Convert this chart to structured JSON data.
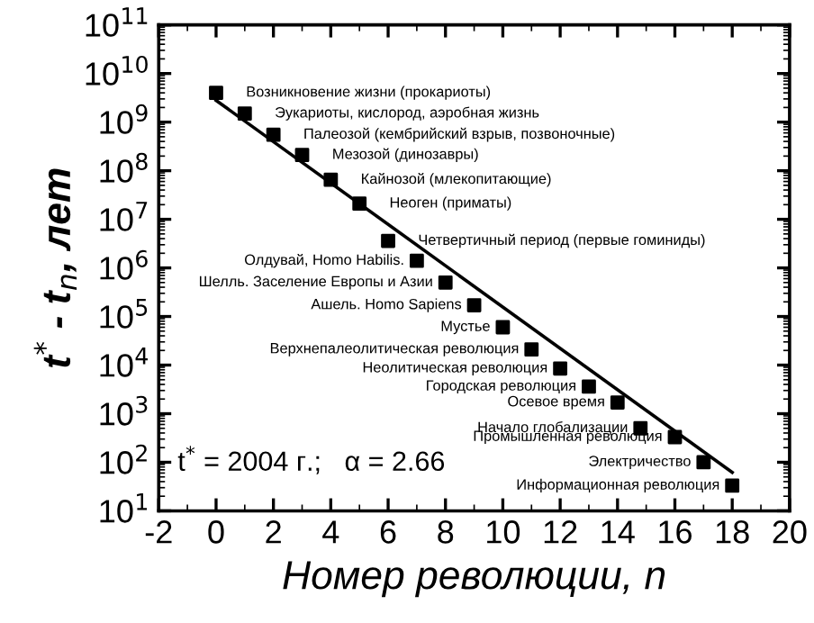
{
  "chart_data": {
    "type": "scatter",
    "xlabel": "Номер революции, n",
    "ylabel": "t$^{*}$ - t$_{n}$, лет",
    "log": "y",
    "grid": false,
    "legend": false,
    "xlim": [
      -2,
      20
    ],
    "xticks": [
      -2,
      0,
      2,
      4,
      6,
      8,
      10,
      12,
      14,
      16,
      18,
      20
    ],
    "ylim": [
      10,
      100000000000
    ],
    "yticks": [
      {
        "value": 10,
        "label": "10$^{1}$"
      },
      {
        "value": 100,
        "label": "10$^{2}$"
      },
      {
        "value": 1000,
        "label": "10$^{3}$"
      },
      {
        "value": 10000,
        "label": "10$^{4}$"
      },
      {
        "value": 100000,
        "label": "10$^{5}$"
      },
      {
        "value": 1000000,
        "label": "10$^{6}$"
      },
      {
        "value": 10000000,
        "label": "10$^{7}$"
      },
      {
        "value": 100000000,
        "label": "10$^{8}$"
      },
      {
        "value": 1000000000,
        "label": "10$^{9}$"
      },
      {
        "value": 10000000000,
        "label": "10$^{10}$"
      },
      {
        "value": 100000000000,
        "label": "10$^{11}$"
      }
    ],
    "series": [
      {
        "type": "scatter",
        "marker": "square",
        "color": "#000000",
        "x": [
          0,
          1,
          2,
          3,
          4,
          5,
          6,
          7,
          8,
          9,
          10,
          11,
          12,
          13,
          14,
          14.8,
          16,
          17,
          18
        ],
        "values": [
          4000000000,
          1500000000,
          550000000,
          210000000,
          65000000,
          21000000,
          3600000,
          1400000,
          500000,
          170000,
          60000,
          21000,
          8500,
          3600,
          1700,
          500,
          330,
          100,
          33
        ]
      },
      {
        "type": "line",
        "marker": "none",
        "line_style": "solid",
        "color": "#000000",
        "x": [
          0,
          18
        ],
        "values": [
          2800000000,
          62
        ]
      }
    ],
    "annotations": [
      {
        "text": "Возникновение жизни (прокариоты)",
        "x": 0,
        "y": 4000000000
      },
      {
        "text": "Эукариоты, кислород, аэробная жизнь",
        "x": 1,
        "y": 1500000000
      },
      {
        "text": "Палеозой (кембрийский взрыв, позвоночные)",
        "x": 2,
        "y": 550000000
      },
      {
        "text": "Мезозой (динозавры)",
        "x": 3,
        "y": 210000000
      },
      {
        "text": "Кайнозой (млекопитающие)",
        "x": 4,
        "y": 65000000
      },
      {
        "text": "Неоген (приматы)",
        "x": 5,
        "y": 21000000
      },
      {
        "text": "Четвертичный период (первые гоминиды)",
        "x": 6,
        "y": 3600000
      },
      {
        "text": "Олдувай, Homo Habilis.",
        "x": 7,
        "y": 1400000
      },
      {
        "text": "Шелль. Заселение Европы и Азии",
        "x": 8,
        "y": 500000
      },
      {
        "text": "Ашель. Homo Sapiens",
        "x": 9,
        "y": 170000
      },
      {
        "text": "Мустье",
        "x": 10,
        "y": 60000
      },
      {
        "text": "Верхнепалеолитическая революция",
        "x": 11,
        "y": 21000
      },
      {
        "text": "Неолитическая революция",
        "x": 12,
        "y": 8500
      },
      {
        "text": "Городская революция",
        "x": 13,
        "y": 3600
      },
      {
        "text": "Осевое время",
        "x": 14,
        "y": 1700
      },
      {
        "text": "Начало глобализации",
        "x": 14.8,
        "y": 500
      },
      {
        "text": "Промышленная революция",
        "x": 16,
        "y": 330
      },
      {
        "text": "Электричество",
        "x": 17,
        "y": 100
      },
      {
        "text": "Информационная революция",
        "x": 18,
        "y": 33
      },
      "t$^{*}$ = 2004 г.;   α = 2.66"
    ]
  }
}
